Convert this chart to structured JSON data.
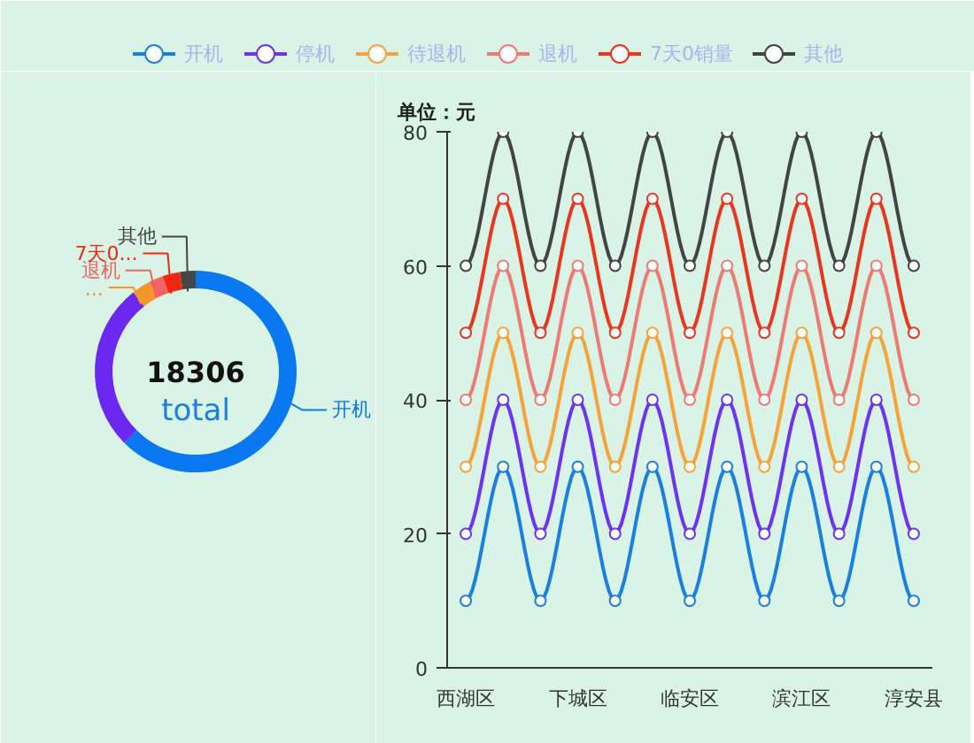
{
  "chart_data": [
    {
      "type": "donut",
      "categories": [
        "开机",
        null,
        "...",
        "退机",
        "7天0...",
        "其他"
      ],
      "values": [
        62.5,
        26.9,
        3,
        2.3,
        2.8,
        2.5
      ],
      "colors": [
        "#0a78f0",
        "#6a28f0",
        "#f5962a",
        "#f06464",
        "#f02814",
        "#464646"
      ],
      "annotations": [
        "18306",
        "total"
      ]
    },
    {
      "type": "line",
      "categories": [
        "西湖区",
        null,
        null,
        "下城区",
        null,
        null,
        "临安区",
        null,
        null,
        "滨江区",
        null,
        null,
        "淳安县"
      ],
      "series": [
        {
          "name": "开机",
          "color": "#1a7fe0",
          "values": [
            10,
            30,
            10,
            30,
            10,
            30,
            10,
            30,
            10,
            30,
            10,
            30,
            10
          ]
        },
        {
          "name": "停机",
          "color": "#6a34f2",
          "values": [
            20,
            40,
            20,
            40,
            20,
            40,
            20,
            40,
            20,
            40,
            20,
            40,
            20
          ]
        },
        {
          "name": "待退机",
          "color": "#f5a33a",
          "values": [
            30,
            50,
            30,
            50,
            30,
            50,
            30,
            50,
            30,
            50,
            30,
            50,
            30
          ]
        },
        {
          "name": "退机",
          "color": "#ee7a74",
          "values": [
            40,
            60,
            40,
            60,
            40,
            60,
            40,
            60,
            40,
            60,
            40,
            60,
            40
          ]
        },
        {
          "name": "7天0销量",
          "color": "#e8361f",
          "values": [
            50,
            70,
            50,
            70,
            50,
            70,
            50,
            70,
            50,
            70,
            50,
            70,
            50
          ]
        },
        {
          "name": "其他",
          "color": "#444444",
          "values": [
            60,
            80,
            60,
            80,
            60,
            80,
            60,
            80,
            60,
            80,
            60,
            80,
            60
          ]
        }
      ],
      "ylabel": "单位：元",
      "ylim": [
        0,
        80
      ],
      "yticks": [
        0,
        20,
        40,
        60,
        80
      ],
      "grid": false,
      "legend": "top",
      "marker": "circle"
    }
  ]
}
